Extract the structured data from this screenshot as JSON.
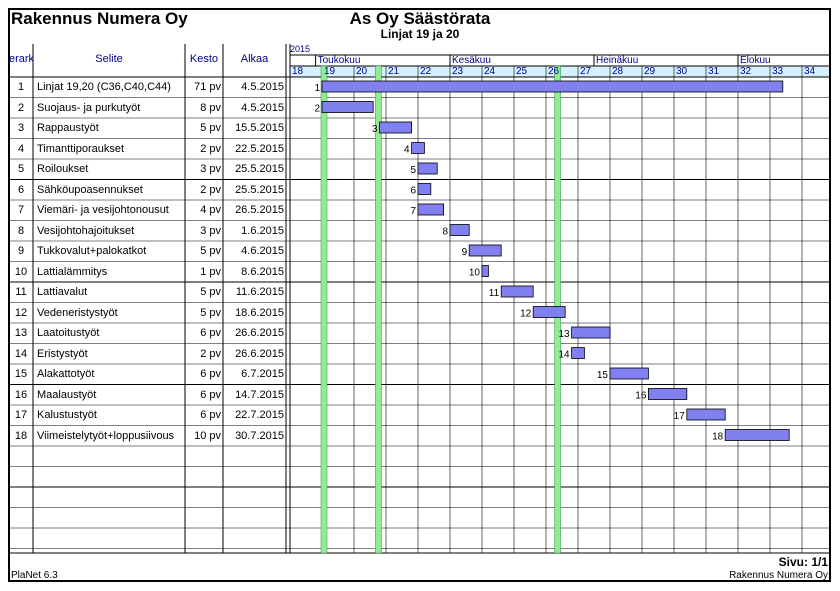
{
  "company": "Rakennus Numera Oy",
  "title": "As Oy Säästörata",
  "subtitle": "Linjat 19 ja 20",
  "columns": {
    "id": "erark",
    "desc": "Selite",
    "dur": "Kesto",
    "start": "Alkaa"
  },
  "year": "2015",
  "months": [
    "Toukokuu",
    "Kesäkuu",
    "Heinäkuu",
    "Elokuu"
  ],
  "page": "Sivu: 1/1",
  "footer_left": "PlaNet 6.3",
  "footer_right": "Rakennus Numera Oy",
  "colors": {
    "bar": "#8080f0",
    "holiday": "#90ee90",
    "header_bg": "#d6f0ff",
    "text_blue": "#00008b"
  },
  "chart_data": {
    "type": "gantt",
    "x_unit": "ISO week (2015)",
    "weeks": [
      18,
      19,
      20,
      21,
      22,
      23,
      24,
      25,
      26,
      27,
      28,
      29,
      30,
      31,
      32,
      33,
      34
    ],
    "months": [
      {
        "name": "Toukokuu",
        "start_week": 18.8
      },
      {
        "name": "Kesäkuu",
        "start_week": 23.0
      },
      {
        "name": "Heinäkuu",
        "start_week": 27.5
      },
      {
        "name": "Elokuu",
        "start_week": 32.0
      }
    ],
    "highlight_weeks": [
      19.0,
      20.7,
      26.3
    ],
    "tasks": [
      {
        "id": "1",
        "name": "Linjat 19,20 (C36,C40,C44)",
        "duration": "71 pv",
        "start": "4.5.2015",
        "start_week": 19.0,
        "end_week": 33.4
      },
      {
        "id": "2",
        "name": "Suojaus- ja purkutyöt",
        "duration": "8 pv",
        "start": "4.5.2015",
        "start_week": 19.0,
        "end_week": 20.6
      },
      {
        "id": "3",
        "name": "Rappaustyöt",
        "duration": "5 pv",
        "start": "15.5.2015",
        "start_week": 20.8,
        "end_week": 21.8
      },
      {
        "id": "4",
        "name": "Timanttiporaukset",
        "duration": "2 pv",
        "start": "22.5.2015",
        "start_week": 21.8,
        "end_week": 22.2
      },
      {
        "id": "5",
        "name": "Roiloukset",
        "duration": "3 pv",
        "start": "25.5.2015",
        "start_week": 22.0,
        "end_week": 22.6
      },
      {
        "id": "6",
        "name": "Sähköupoasennukset",
        "duration": "2 pv",
        "start": "25.5.2015",
        "start_week": 22.0,
        "end_week": 22.4
      },
      {
        "id": "7",
        "name": "Viemäri- ja vesijohtonousut",
        "duration": "4 pv",
        "start": "26.5.2015",
        "start_week": 22.0,
        "end_week": 22.8
      },
      {
        "id": "8",
        "name": "Vesijohtohajoitukset",
        "duration": "3 pv",
        "start": "1.6.2015",
        "start_week": 23.0,
        "end_week": 23.6
      },
      {
        "id": "9",
        "name": "Tukkovalut+palokatkot",
        "duration": "5 pv",
        "start": "4.6.2015",
        "start_week": 23.6,
        "end_week": 24.6
      },
      {
        "id": "10",
        "name": "Lattialämmitys",
        "duration": "1 pv",
        "start": "8.6.2015",
        "start_week": 24.0,
        "end_week": 24.2
      },
      {
        "id": "11",
        "name": "Lattiavalut",
        "duration": "5 pv",
        "start": "11.6.2015",
        "start_week": 24.6,
        "end_week": 25.6
      },
      {
        "id": "12",
        "name": "Vedeneristystyöt",
        "duration": "5 pv",
        "start": "18.6.2015",
        "start_week": 25.6,
        "end_week": 26.6
      },
      {
        "id": "13",
        "name": "Laatoitustyöt",
        "duration": "6 pv",
        "start": "26.6.2015",
        "start_week": 26.8,
        "end_week": 28.0
      },
      {
        "id": "14",
        "name": "Eristystyöt",
        "duration": "2 pv",
        "start": "26.6.2015",
        "start_week": 26.8,
        "end_week": 27.2
      },
      {
        "id": "15",
        "name": "Alakattotyöt",
        "duration": "6 pv",
        "start": "6.7.2015",
        "start_week": 28.0,
        "end_week": 29.2
      },
      {
        "id": "16",
        "name": "Maalaustyöt",
        "duration": "6 pv",
        "start": "14.7.2015",
        "start_week": 29.2,
        "end_week": 30.4
      },
      {
        "id": "17",
        "name": "Kalustustyöt",
        "duration": "6 pv",
        "start": "22.7.2015",
        "start_week": 30.4,
        "end_week": 31.6
      },
      {
        "id": "18",
        "name": "Viimeistelytyöt+loppusiivous",
        "duration": "10 pv",
        "start": "30.7.2015",
        "start_week": 31.6,
        "end_week": 33.6
      }
    ]
  }
}
